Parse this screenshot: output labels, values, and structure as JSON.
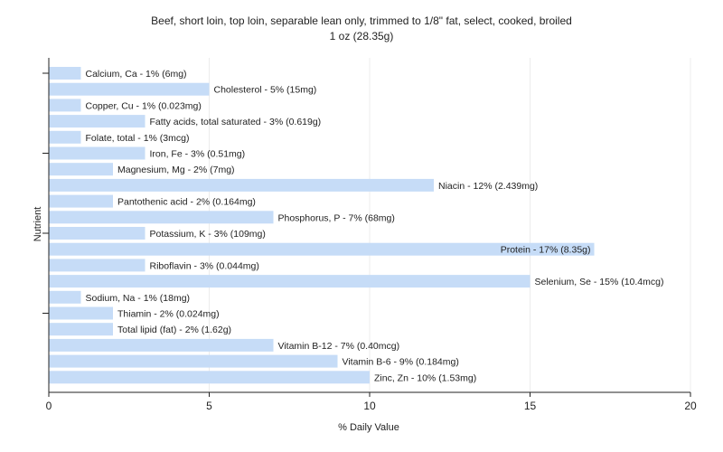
{
  "chart_data": {
    "type": "bar",
    "orientation": "horizontal",
    "title": "Beef, short loin, top loin, separable lean only, trimmed to 1/8\" fat, select, cooked, broiled",
    "subtitle": "1 oz (28.35g)",
    "xlabel": "% Daily Value",
    "ylabel": "Nutrient",
    "xlim": [
      0,
      20
    ],
    "xticks": [
      0,
      5,
      10,
      15,
      20
    ],
    "grid": true,
    "bar_color": "#c6dcf7",
    "categories": [
      "Calcium, Ca",
      "Cholesterol",
      "Copper, Cu",
      "Fatty acids, total saturated",
      "Folate, total",
      "Iron, Fe",
      "Magnesium, Mg",
      "Niacin",
      "Pantothenic acid",
      "Phosphorus, P",
      "Potassium, K",
      "Protein",
      "Riboflavin",
      "Selenium, Se",
      "Sodium, Na",
      "Thiamin",
      "Total lipid (fat)",
      "Vitamin B-12",
      "Vitamin B-6",
      "Zinc, Zn"
    ],
    "values": [
      1,
      5,
      1,
      3,
      1,
      3,
      2,
      12,
      2,
      7,
      3,
      17,
      3,
      15,
      1,
      2,
      2,
      7,
      9,
      10
    ],
    "labels": [
      "Calcium, Ca - 1% (6mg)",
      "Cholesterol - 5% (15mg)",
      "Copper, Cu - 1% (0.023mg)",
      "Fatty acids, total saturated - 3% (0.619g)",
      "Folate, total - 1% (3mcg)",
      "Iron, Fe - 3% (0.51mg)",
      "Magnesium, Mg - 2% (7mg)",
      "Niacin - 12% (2.439mg)",
      "Pantothenic acid - 2% (0.164mg)",
      "Phosphorus, P - 7% (68mg)",
      "Potassium, K - 3% (109mg)",
      "Protein - 17% (8.35g)",
      "Riboflavin - 3% (0.044mg)",
      "Selenium, Se - 15% (10.4mcg)",
      "Sodium, Na - 1% (18mg)",
      "Thiamin - 2% (0.024mg)",
      "Total lipid (fat) - 2% (1.62g)",
      "Vitamin B-12 - 7% (0.40mcg)",
      "Vitamin B-6 - 9% (0.184mg)",
      "Zinc, Zn - 10% (1.53mg)"
    ]
  }
}
